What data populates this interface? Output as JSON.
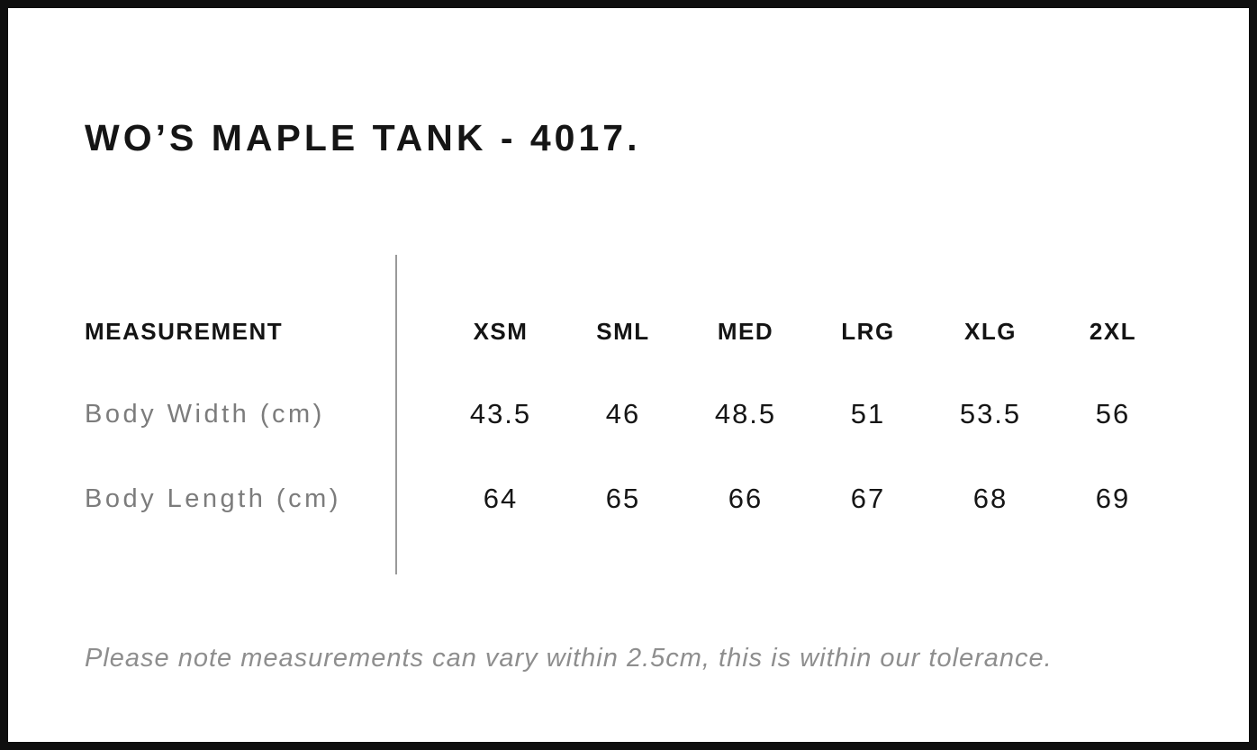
{
  "page": {
    "title": "WO’S MAPLE TANK - 4017."
  },
  "size_chart": {
    "measurement_header": "MEASUREMENT",
    "size_headers": [
      "XSM",
      "SML",
      "MED",
      "LRG",
      "XLG",
      "2XL"
    ],
    "rows": [
      {
        "label": "Body Width (cm)",
        "values": [
          "43.5",
          "46",
          "48.5",
          "51",
          "53.5",
          "56"
        ]
      },
      {
        "label": "Body Length (cm)",
        "values": [
          "64",
          "65",
          "66",
          "67",
          "68",
          "69"
        ]
      }
    ],
    "note": "Please note measurements can vary within 2.5cm, this is within our tolerance."
  },
  "chart_data": {
    "type": "table",
    "title": "WO’S MAPLE TANK - 4017.",
    "columns": [
      "MEASUREMENT",
      "XSM",
      "SML",
      "MED",
      "LRG",
      "XLG",
      "2XL"
    ],
    "rows": [
      [
        "Body Width (cm)",
        43.5,
        46,
        48.5,
        51,
        53.5,
        56
      ],
      [
        "Body Length (cm)",
        64,
        65,
        66,
        67,
        68,
        69
      ]
    ],
    "footnote": "Please note measurements can vary within 2.5cm, this is within our tolerance."
  },
  "colors": {
    "border": "#0f0f0f",
    "title_text": "#151515",
    "value_text": "#161616",
    "muted_text": "#7c7c7c",
    "note_text": "#8e8e8e",
    "divider": "#9a9a9a",
    "background": "#ffffff"
  }
}
